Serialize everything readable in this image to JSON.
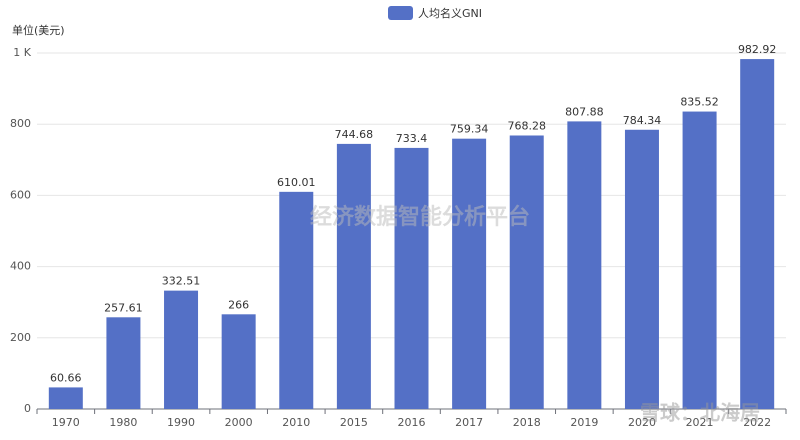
{
  "chart_data": {
    "type": "bar",
    "y_axis_label": "单位(美元)",
    "categories": [
      "1970",
      "1980",
      "1990",
      "2000",
      "2010",
      "2015",
      "2016",
      "2017",
      "2018",
      "2019",
      "2020",
      "2021",
      "2022"
    ],
    "series": [
      {
        "name": "人均名义GNI",
        "color": "#5470c6",
        "values": [
          60.66,
          257.61,
          332.51,
          266,
          610.01,
          744.68,
          733.4,
          759.34,
          768.28,
          807.88,
          784.34,
          835.52,
          982.92
        ]
      }
    ],
    "ylim": [
      0,
      1000
    ],
    "yticks": [
      0,
      200,
      400,
      600,
      800,
      {
        "value": 1000,
        "label": "1 K"
      }
    ],
    "grid": true,
    "legend": "top",
    "watermarks": [
      "经济数据智能分析平台",
      "雪球：北海居"
    ]
  }
}
